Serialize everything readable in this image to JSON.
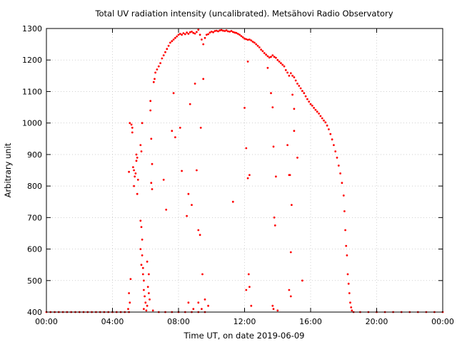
{
  "chart_data": {
    "type": "scatter",
    "title": "Total UV radiation intensity (uncalibrated). Metsähovi Radio Observatory",
    "xlabel": "Time UT, on date 2019-06-09",
    "ylabel": "Arbitrary unit",
    "xlim": [
      0,
      24
    ],
    "ylim": [
      400,
      1300
    ],
    "x_tick_values": [
      0,
      4,
      8,
      12,
      16,
      20,
      24
    ],
    "x_tick_labels": [
      "00:00",
      "04:00",
      "08:00",
      "12:00",
      "16:00",
      "20:00",
      "00:00"
    ],
    "y_tick_values": [
      400,
      500,
      600,
      700,
      800,
      900,
      1000,
      1100,
      1200,
      1300
    ],
    "y_tick_labels": [
      "400",
      "500",
      "600",
      "700",
      "800",
      "900",
      "1000",
      "1100",
      "1200",
      "1300"
    ],
    "grid": true,
    "legend": "none",
    "point_color": "#ff0000",
    "series": [
      {
        "values": [
          [
            0.0,
            400
          ],
          [
            0.25,
            400
          ],
          [
            0.5,
            400
          ],
          [
            0.75,
            400
          ],
          [
            1.0,
            400
          ],
          [
            1.25,
            400
          ],
          [
            1.5,
            400
          ],
          [
            1.75,
            400
          ],
          [
            2.0,
            400
          ],
          [
            2.25,
            400
          ],
          [
            2.5,
            400
          ],
          [
            2.75,
            400
          ],
          [
            3.0,
            400
          ],
          [
            3.25,
            400
          ],
          [
            3.5,
            400
          ],
          [
            3.75,
            400
          ],
          [
            4.0,
            400
          ],
          [
            4.25,
            400
          ],
          [
            4.5,
            400
          ],
          [
            4.75,
            400
          ],
          [
            5.0,
            400
          ],
          [
            4.95,
            410
          ],
          [
            5.05,
            430
          ],
          [
            5.0,
            460
          ],
          [
            5.1,
            505
          ],
          [
            5.0,
            845
          ],
          [
            5.05,
            1000
          ],
          [
            5.15,
            995
          ],
          [
            5.2,
            985
          ],
          [
            5.2,
            970
          ],
          [
            5.25,
            860
          ],
          [
            5.3,
            850
          ],
          [
            5.35,
            830
          ],
          [
            5.3,
            800
          ],
          [
            5.4,
            840
          ],
          [
            5.45,
            880
          ],
          [
            5.5,
            890
          ],
          [
            5.45,
            900
          ],
          [
            5.55,
            820
          ],
          [
            5.5,
            775
          ],
          [
            5.7,
            930
          ],
          [
            5.75,
            910
          ],
          [
            5.8,
            1000
          ],
          [
            5.7,
            690
          ],
          [
            5.75,
            670
          ],
          [
            5.7,
            600
          ],
          [
            5.8,
            630
          ],
          [
            5.8,
            580
          ],
          [
            5.75,
            550
          ],
          [
            5.85,
            540
          ],
          [
            5.85,
            520
          ],
          [
            5.9,
            500
          ],
          [
            5.9,
            470
          ],
          [
            5.95,
            450
          ],
          [
            6.0,
            430
          ],
          [
            5.9,
            410
          ],
          [
            6.05,
            405
          ],
          [
            6.1,
            420
          ],
          [
            6.15,
            480
          ],
          [
            6.2,
            460
          ],
          [
            6.1,
            560
          ],
          [
            6.2,
            520
          ],
          [
            6.25,
            440
          ],
          [
            6.3,
            1070
          ],
          [
            6.3,
            1040
          ],
          [
            6.35,
            950
          ],
          [
            6.4,
            870
          ],
          [
            6.35,
            810
          ],
          [
            6.4,
            790
          ],
          [
            6.45,
            405
          ],
          [
            6.5,
            1130
          ],
          [
            6.55,
            1140
          ],
          [
            6.6,
            1160
          ],
          [
            6.7,
            1170
          ],
          [
            6.8,
            1180
          ],
          [
            6.9,
            1190
          ],
          [
            7.0,
            1205
          ],
          [
            7.1,
            1215
          ],
          [
            7.2,
            1225
          ],
          [
            7.3,
            1235
          ],
          [
            7.4,
            1245
          ],
          [
            7.5,
            1255
          ],
          [
            7.6,
            1260
          ],
          [
            7.7,
            1265
          ],
          [
            7.8,
            1270
          ],
          [
            7.9,
            1275
          ],
          [
            8.0,
            1280
          ],
          [
            8.1,
            1283
          ],
          [
            8.2,
            1280
          ],
          [
            8.3,
            1285
          ],
          [
            8.4,
            1282
          ],
          [
            8.5,
            1287
          ],
          [
            8.6,
            1283
          ],
          [
            8.7,
            1288
          ],
          [
            8.8,
            1290
          ],
          [
            8.9,
            1286
          ],
          [
            9.0,
            1284
          ],
          [
            9.1,
            1289
          ],
          [
            9.2,
            1296
          ],
          [
            9.3,
            1280
          ],
          [
            9.4,
            1265
          ],
          [
            9.5,
            1250
          ],
          [
            9.6,
            1270
          ],
          [
            9.7,
            1280
          ],
          [
            9.8,
            1282
          ],
          [
            9.9,
            1287
          ],
          [
            10.0,
            1290
          ],
          [
            10.1,
            1288
          ],
          [
            10.2,
            1292
          ],
          [
            10.3,
            1293
          ],
          [
            10.4,
            1291
          ],
          [
            10.5,
            1294
          ],
          [
            10.6,
            1295
          ],
          [
            10.7,
            1293
          ],
          [
            10.8,
            1292
          ],
          [
            10.9,
            1294
          ],
          [
            11.0,
            1291
          ],
          [
            11.1,
            1290
          ],
          [
            11.2,
            1292
          ],
          [
            11.3,
            1289
          ],
          [
            11.4,
            1287
          ],
          [
            11.5,
            1286
          ],
          [
            11.6,
            1283
          ],
          [
            11.7,
            1280
          ],
          [
            11.8,
            1276
          ],
          [
            11.9,
            1272
          ],
          [
            12.0,
            1268
          ],
          [
            12.1,
            1266
          ],
          [
            12.2,
            1264
          ],
          [
            12.3,
            1265
          ],
          [
            12.4,
            1262
          ],
          [
            12.5,
            1258
          ],
          [
            12.6,
            1255
          ],
          [
            12.7,
            1250
          ],
          [
            12.8,
            1245
          ],
          [
            12.9,
            1240
          ],
          [
            13.0,
            1233
          ],
          [
            13.1,
            1228
          ],
          [
            13.2,
            1222
          ],
          [
            13.3,
            1217
          ],
          [
            13.4,
            1212
          ],
          [
            13.5,
            1208
          ],
          [
            13.6,
            1210
          ],
          [
            13.7,
            1215
          ],
          [
            13.8,
            1210
          ],
          [
            13.9,
            1207
          ],
          [
            14.0,
            1200
          ],
          [
            14.1,
            1195
          ],
          [
            14.2,
            1190
          ],
          [
            14.3,
            1185
          ],
          [
            14.4,
            1180
          ],
          [
            14.5,
            1168
          ],
          [
            14.6,
            1160
          ],
          [
            14.7,
            1150
          ],
          [
            14.8,
            1158
          ],
          [
            14.9,
            1150
          ],
          [
            15.0,
            1145
          ],
          [
            15.1,
            1135
          ],
          [
            15.2,
            1125
          ],
          [
            15.3,
            1118
          ],
          [
            15.4,
            1110
          ],
          [
            15.5,
            1102
          ],
          [
            15.6,
            1095
          ],
          [
            15.7,
            1085
          ],
          [
            15.8,
            1076
          ],
          [
            15.9,
            1068
          ],
          [
            16.0,
            1060
          ],
          [
            16.1,
            1055
          ],
          [
            16.2,
            1048
          ],
          [
            16.3,
            1042
          ],
          [
            16.4,
            1036
          ],
          [
            16.5,
            1030
          ],
          [
            16.6,
            1022
          ],
          [
            16.7,
            1015
          ],
          [
            16.8,
            1008
          ],
          [
            16.9,
            1002
          ],
          [
            17.0,
            992
          ],
          [
            17.1,
            980
          ],
          [
            17.2,
            965
          ],
          [
            17.3,
            948
          ],
          [
            17.4,
            930
          ],
          [
            17.5,
            910
          ],
          [
            17.6,
            890
          ],
          [
            17.7,
            865
          ],
          [
            17.8,
            840
          ],
          [
            17.9,
            810
          ],
          [
            18.0,
            770
          ],
          [
            18.05,
            720
          ],
          [
            18.1,
            660
          ],
          [
            18.15,
            610
          ],
          [
            18.2,
            580
          ],
          [
            18.25,
            520
          ],
          [
            18.3,
            490
          ],
          [
            18.35,
            460
          ],
          [
            18.4,
            430
          ],
          [
            18.45,
            415
          ],
          [
            18.5,
            405
          ],
          [
            6.8,
            400
          ],
          [
            7.2,
            400
          ],
          [
            7.6,
            400
          ],
          [
            8.0,
            400
          ],
          [
            8.4,
            400
          ],
          [
            8.8,
            400
          ],
          [
            9.2,
            400
          ],
          [
            9.6,
            400
          ],
          [
            7.1,
            820
          ],
          [
            7.25,
            725
          ],
          [
            7.6,
            975
          ],
          [
            7.7,
            1095
          ],
          [
            7.8,
            955
          ],
          [
            8.1,
            985
          ],
          [
            8.2,
            848
          ],
          [
            8.5,
            705
          ],
          [
            8.6,
            775
          ],
          [
            8.7,
            1060
          ],
          [
            8.8,
            740
          ],
          [
            9.0,
            1125
          ],
          [
            9.1,
            850
          ],
          [
            9.2,
            660
          ],
          [
            9.3,
            645
          ],
          [
            9.35,
            985
          ],
          [
            9.45,
            520
          ],
          [
            9.5,
            1140
          ],
          [
            8.6,
            430
          ],
          [
            8.9,
            410
          ],
          [
            9.2,
            430
          ],
          [
            9.4,
            410
          ],
          [
            9.6,
            440
          ],
          [
            9.8,
            420
          ],
          [
            11.3,
            750
          ],
          [
            12.0,
            1048
          ],
          [
            12.1,
            920
          ],
          [
            12.2,
            825
          ],
          [
            12.3,
            835
          ],
          [
            12.25,
            520
          ],
          [
            12.3,
            480
          ],
          [
            12.4,
            420
          ],
          [
            12.2,
            1195
          ],
          [
            12.1,
            470
          ],
          [
            13.4,
            1175
          ],
          [
            13.6,
            1095
          ],
          [
            13.7,
            1050
          ],
          [
            13.75,
            925
          ],
          [
            13.8,
            700
          ],
          [
            13.85,
            675
          ],
          [
            13.7,
            420
          ],
          [
            13.75,
            410
          ],
          [
            13.9,
            830
          ],
          [
            14.0,
            405
          ],
          [
            14.6,
            930
          ],
          [
            14.7,
            835
          ],
          [
            14.75,
            835
          ],
          [
            14.8,
            590
          ],
          [
            14.85,
            740
          ],
          [
            14.9,
            1090
          ],
          [
            15.0,
            1045
          ],
          [
            15.0,
            975
          ],
          [
            15.2,
            890
          ],
          [
            14.7,
            470
          ],
          [
            14.8,
            450
          ],
          [
            15.5,
            500
          ],
          [
            18.6,
            400
          ],
          [
            19.0,
            400
          ],
          [
            19.5,
            400
          ],
          [
            20.0,
            400
          ],
          [
            20.5,
            400
          ],
          [
            21.0,
            400
          ],
          [
            21.5,
            400
          ],
          [
            22.0,
            400
          ],
          [
            22.5,
            400
          ],
          [
            23.0,
            400
          ],
          [
            23.5,
            400
          ],
          [
            24.0,
            400
          ]
        ]
      }
    ]
  }
}
